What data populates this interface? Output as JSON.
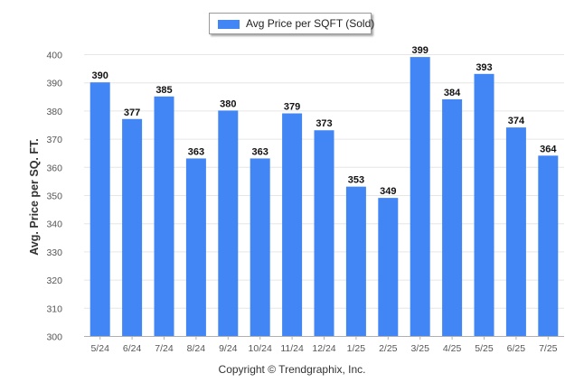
{
  "chart_data": {
    "type": "bar",
    "categories": [
      "5/24",
      "6/24",
      "7/24",
      "8/24",
      "9/24",
      "10/24",
      "11/24",
      "12/24",
      "1/25",
      "2/25",
      "3/25",
      "4/25",
      "5/25",
      "6/25",
      "7/25"
    ],
    "series": [
      {
        "name": "Avg Price per SQFT (Sold)",
        "values": [
          390,
          377,
          385,
          363,
          380,
          363,
          379,
          373,
          353,
          349,
          399,
          384,
          393,
          374,
          364
        ]
      }
    ],
    "ylabel": "Avg. Price per SQ. FT.",
    "xlabel": "",
    "ylim": [
      300,
      400
    ],
    "yticks": [
      300,
      310,
      320,
      330,
      340,
      350,
      360,
      370,
      380,
      390,
      400
    ],
    "grid": true,
    "data_labels": true,
    "legend": "top-center",
    "bar_color": "#4285f4"
  },
  "footer": {
    "copyright": "Copyright © Trendgraphix, Inc."
  }
}
